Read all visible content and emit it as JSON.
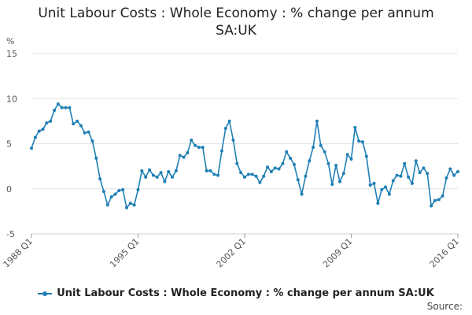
{
  "chart_data": {
    "type": "line",
    "title_lines": [
      "Unit Labour Costs : Whole Economy : % change per annum",
      "SA:UK"
    ],
    "ylabel": "%",
    "ylim": [
      -5,
      15
    ],
    "yticks": [
      -5,
      0,
      5,
      10,
      15
    ],
    "xticks": [
      "1988 Q1",
      "1995 Q1",
      "2002 Q1",
      "2009 Q1",
      "2016 Q1"
    ],
    "grid": "horizontal",
    "legend_position": "bottom",
    "series": [
      {
        "name": "Unit Labour Costs : Whole Economy : % change per annum SA:UK",
        "color": "#1f7fb4",
        "start": "1988 Q1",
        "values": [
          4.5,
          5.7,
          6.4,
          6.6,
          7.3,
          7.5,
          8.7,
          9.4,
          9.0,
          9.0,
          9.0,
          7.2,
          7.5,
          7.0,
          6.2,
          6.3,
          5.3,
          3.4,
          1.1,
          -0.3,
          -1.8,
          -0.9,
          -0.6,
          -0.2,
          -0.1,
          -2.1,
          -1.6,
          -1.8,
          -0.1,
          2.0,
          1.3,
          2.1,
          1.5,
          1.3,
          1.8,
          0.8,
          1.9,
          1.3,
          2.0,
          3.7,
          3.5,
          4.0,
          5.4,
          4.8,
          4.6,
          4.6,
          2.0,
          2.0,
          1.6,
          1.5,
          4.2,
          6.7,
          7.5,
          5.4,
          2.8,
          1.8,
          1.3,
          1.6,
          1.6,
          1.4,
          0.7,
          1.4,
          2.4,
          1.9,
          2.3,
          2.2,
          2.8,
          4.1,
          3.4,
          2.7,
          1.0,
          -0.6,
          1.4,
          3.1,
          4.6,
          7.5,
          4.8,
          4.1,
          2.8,
          0.5,
          2.6,
          0.8,
          1.7,
          3.8,
          3.3,
          6.8,
          5.3,
          5.2,
          3.6,
          0.4,
          0.6,
          -1.6,
          -0.1,
          0.2,
          -0.6,
          0.9,
          1.5,
          1.4,
          2.8,
          1.3,
          0.6,
          3.1,
          1.8,
          2.3,
          1.7,
          -1.9,
          -1.3,
          -1.2,
          -0.8,
          1.2,
          2.2,
          1.5,
          1.9
        ]
      }
    ]
  },
  "source_label": "Source:"
}
